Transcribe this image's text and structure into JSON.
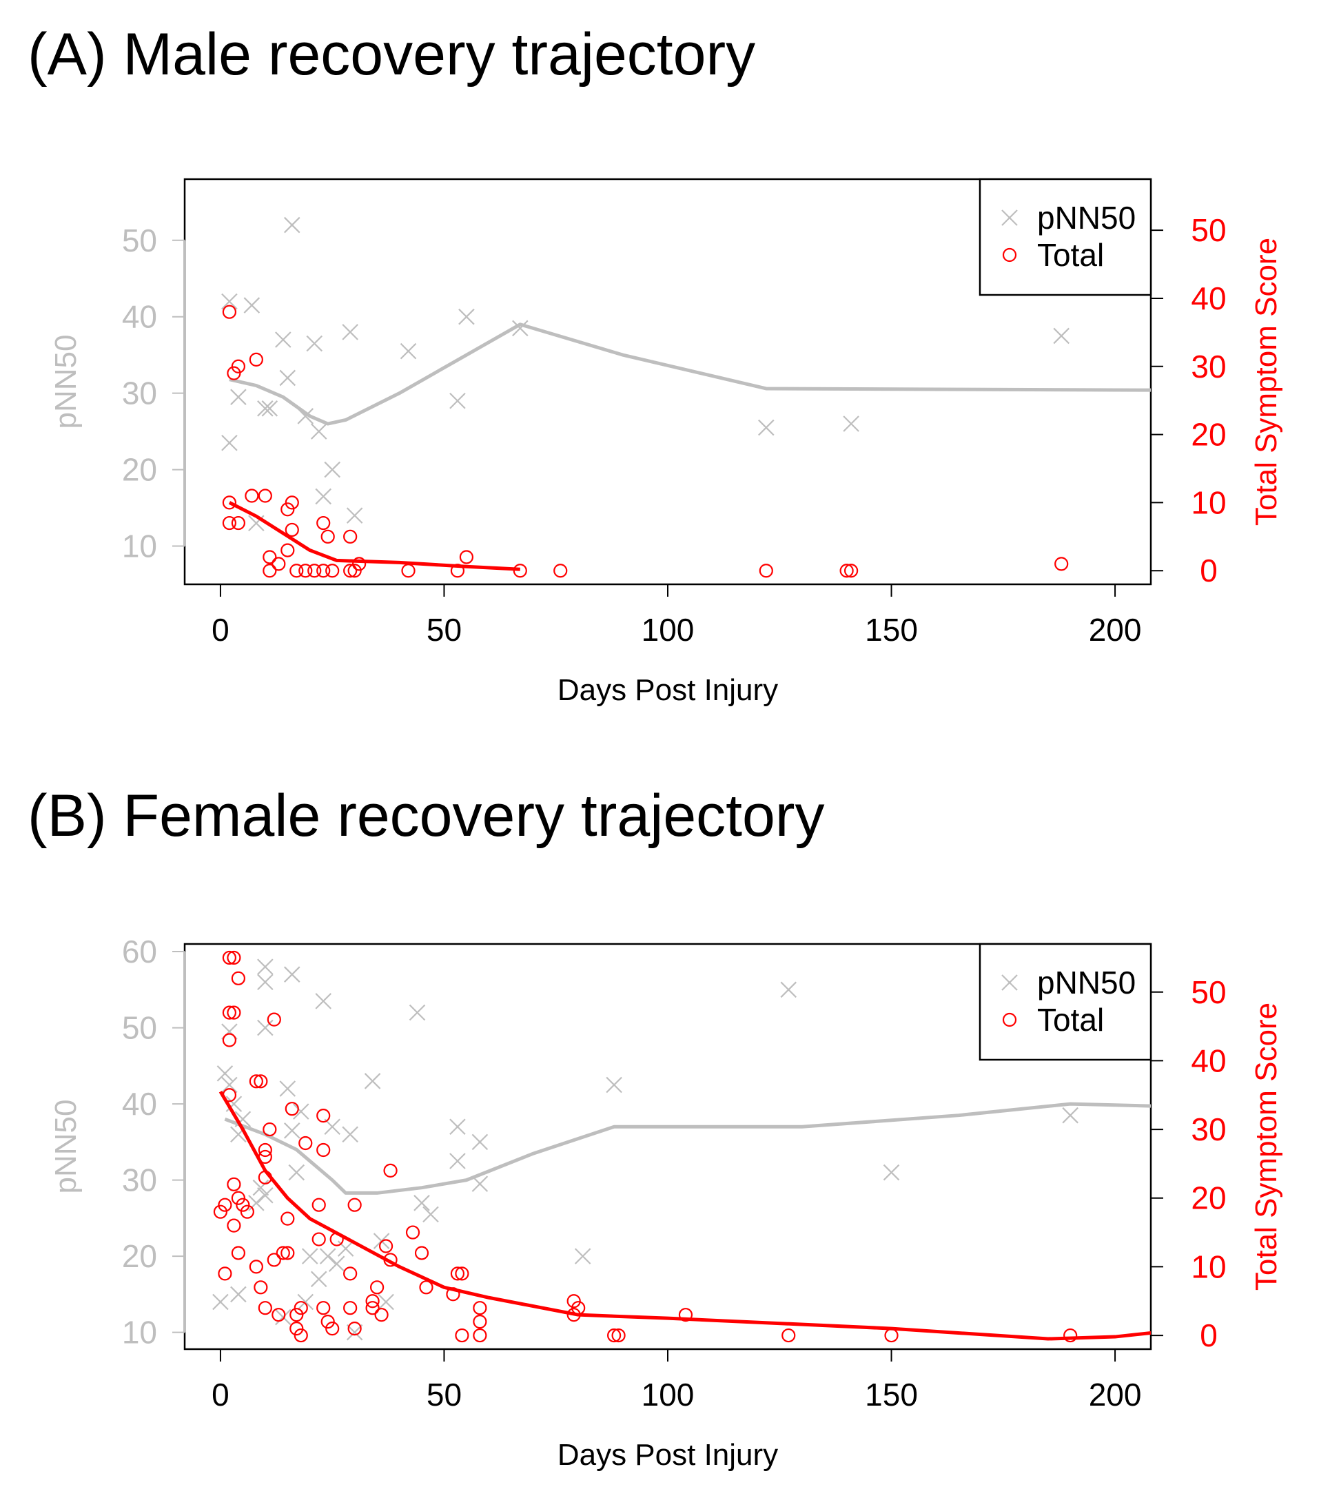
{
  "chart_data": [
    {
      "type": "scatter",
      "title": "(A) Male recovery trajectory",
      "xlabel": "Days Post Injury",
      "ylabel": "pNN50",
      "ylabel_right": "Total Symptom Score",
      "xlim": [
        -8,
        208
      ],
      "ylim": [
        5,
        58
      ],
      "ylim_right": [
        -2,
        57.5
      ],
      "xticks": [
        "0",
        "50",
        "100",
        "150",
        "200"
      ],
      "yticks": [
        "10",
        "20",
        "30",
        "40",
        "50"
      ],
      "yticks_right": [
        "0",
        "10",
        "20",
        "30",
        "40",
        "50"
      ],
      "legend_position": "top-right",
      "colors": {
        "pnn50": "#bebebe",
        "total": "#ff0000"
      },
      "series": [
        {
          "name": "pNN50",
          "axis": "left",
          "marker": "x",
          "points": [
            [
              2,
              23.5
            ],
            [
              2,
              42
            ],
            [
              4,
              29.5
            ],
            [
              7,
              41.5
            ],
            [
              8,
              13
            ],
            [
              10,
              28
            ],
            [
              11,
              28
            ],
            [
              14,
              37
            ],
            [
              15,
              32
            ],
            [
              16,
              52
            ],
            [
              19,
              27
            ],
            [
              21,
              36.5
            ],
            [
              22,
              25
            ],
            [
              23,
              16.5
            ],
            [
              25,
              20
            ],
            [
              29,
              38
            ],
            [
              30,
              14
            ],
            [
              42,
              35.5
            ],
            [
              53,
              29
            ],
            [
              55,
              40
            ],
            [
              67,
              38.5
            ],
            [
              122,
              25.5
            ],
            [
              141,
              26
            ],
            [
              188,
              37.5
            ]
          ],
          "smooth": [
            [
              2,
              31.8
            ],
            [
              8,
              31
            ],
            [
              14,
              29.5
            ],
            [
              20,
              27
            ],
            [
              24,
              26
            ],
            [
              28,
              26.5
            ],
            [
              40,
              30
            ],
            [
              55,
              35
            ],
            [
              67,
              39
            ],
            [
              90,
              35
            ],
            [
              122,
              30.6
            ],
            [
              165,
              30.5
            ],
            [
              210,
              30.4
            ]
          ]
        },
        {
          "name": "Total",
          "axis": "right",
          "marker": "circle",
          "points": [
            [
              2,
              38
            ],
            [
              2,
              10
            ],
            [
              2,
              7
            ],
            [
              3,
              29
            ],
            [
              4,
              30
            ],
            [
              4,
              7
            ],
            [
              7,
              11
            ],
            [
              8,
              31
            ],
            [
              10,
              11
            ],
            [
              11,
              2
            ],
            [
              11,
              0
            ],
            [
              13,
              1
            ],
            [
              15,
              9
            ],
            [
              15,
              3
            ],
            [
              16,
              10
            ],
            [
              16,
              6
            ],
            [
              17,
              0
            ],
            [
              19,
              0
            ],
            [
              21,
              0
            ],
            [
              23,
              7
            ],
            [
              23,
              0
            ],
            [
              24,
              5
            ],
            [
              25,
              0
            ],
            [
              29,
              5
            ],
            [
              29,
              0
            ],
            [
              30,
              0
            ],
            [
              31,
              1
            ],
            [
              42,
              0
            ],
            [
              53,
              0
            ],
            [
              55,
              2
            ],
            [
              67,
              0
            ],
            [
              76,
              0
            ],
            [
              122,
              0
            ],
            [
              140,
              0
            ],
            [
              141,
              0
            ],
            [
              188,
              1
            ]
          ],
          "smooth": [
            [
              2,
              10
            ],
            [
              8,
              8
            ],
            [
              14,
              5.5
            ],
            [
              20,
              3
            ],
            [
              26,
              1.5
            ],
            [
              40,
              1.2
            ],
            [
              55,
              0.6
            ],
            [
              67,
              0.2
            ]
          ]
        }
      ]
    },
    {
      "type": "scatter",
      "title": "(B) Female recovery trajectory",
      "xlabel": "Days Post Injury",
      "ylabel": "pNN50",
      "ylabel_right": "Total Symptom Score",
      "xlim": [
        -8,
        208
      ],
      "ylim": [
        7.8,
        61
      ],
      "ylim_right": [
        -2,
        57
      ],
      "xticks": [
        "0",
        "50",
        "100",
        "150",
        "200"
      ],
      "yticks": [
        "10",
        "20",
        "30",
        "40",
        "50",
        "60"
      ],
      "yticks_right": [
        "0",
        "10",
        "20",
        "30",
        "40",
        "50"
      ],
      "legend_position": "top-right",
      "colors": {
        "pnn50": "#bebebe",
        "total": "#ff0000"
      },
      "series": [
        {
          "name": "pNN50",
          "axis": "left",
          "marker": "x",
          "points": [
            [
              0,
              14
            ],
            [
              1,
              44
            ],
            [
              2,
              49.5
            ],
            [
              2,
              42.5
            ],
            [
              3,
              40
            ],
            [
              4,
              36
            ],
            [
              4,
              15
            ],
            [
              5,
              38
            ],
            [
              8,
              27
            ],
            [
              9,
              29
            ],
            [
              10,
              58
            ],
            [
              10,
              56
            ],
            [
              10,
              50
            ],
            [
              10,
              28
            ],
            [
              14,
              12
            ],
            [
              15,
              42
            ],
            [
              16,
              36.5
            ],
            [
              17,
              31
            ],
            [
              16,
              57
            ],
            [
              18,
              39
            ],
            [
              19,
              14
            ],
            [
              20,
              20
            ],
            [
              22,
              17
            ],
            [
              23,
              53.5
            ],
            [
              24,
              20
            ],
            [
              25,
              37
            ],
            [
              26,
              19
            ],
            [
              28,
              21
            ],
            [
              29,
              36
            ],
            [
              30,
              10
            ],
            [
              34,
              43
            ],
            [
              36,
              22
            ],
            [
              37,
              14
            ],
            [
              44,
              52
            ],
            [
              45,
              27
            ],
            [
              47,
              25.5
            ],
            [
              53,
              37
            ],
            [
              53,
              32.5
            ],
            [
              58,
              35
            ],
            [
              58,
              29.5
            ],
            [
              81,
              20
            ],
            [
              88,
              42.5
            ],
            [
              127,
              55
            ],
            [
              150,
              31
            ],
            [
              190,
              38.5
            ]
          ],
          "smooth": [
            [
              1,
              38
            ],
            [
              10,
              36
            ],
            [
              17,
              34
            ],
            [
              25,
              30
            ],
            [
              28,
              28.3
            ],
            [
              35,
              28.3
            ],
            [
              45,
              29
            ],
            [
              55,
              30
            ],
            [
              70,
              33.5
            ],
            [
              88,
              37
            ],
            [
              130,
              37
            ],
            [
              165,
              38.5
            ],
            [
              190,
              40
            ],
            [
              210,
              39.7
            ]
          ]
        },
        {
          "name": "Total",
          "axis": "right",
          "marker": "circle",
          "points": [
            [
              0,
              18
            ],
            [
              1,
              19
            ],
            [
              1,
              9
            ],
            [
              2,
              55
            ],
            [
              2,
              47
            ],
            [
              2,
              43
            ],
            [
              2,
              35
            ],
            [
              3,
              55
            ],
            [
              3,
              47
            ],
            [
              3,
              22
            ],
            [
              3,
              16
            ],
            [
              4,
              52
            ],
            [
              4,
              20
            ],
            [
              4,
              12
            ],
            [
              5,
              19
            ],
            [
              6,
              18
            ],
            [
              8,
              37
            ],
            [
              8,
              10
            ],
            [
              9,
              37
            ],
            [
              9,
              7
            ],
            [
              10,
              27
            ],
            [
              10,
              26
            ],
            [
              10,
              23
            ],
            [
              10,
              4
            ],
            [
              11,
              30
            ],
            [
              12,
              46
            ],
            [
              12,
              11
            ],
            [
              13,
              3
            ],
            [
              14,
              12
            ],
            [
              15,
              17
            ],
            [
              15,
              12
            ],
            [
              16,
              33
            ],
            [
              17,
              3
            ],
            [
              17,
              1
            ],
            [
              18,
              4
            ],
            [
              18,
              0
            ],
            [
              19,
              28
            ],
            [
              22,
              19
            ],
            [
              22,
              14
            ],
            [
              23,
              32
            ],
            [
              23,
              27
            ],
            [
              23,
              4
            ],
            [
              24,
              2
            ],
            [
              25,
              1
            ],
            [
              26,
              14
            ],
            [
              29,
              9
            ],
            [
              29,
              4
            ],
            [
              30,
              19
            ],
            [
              30,
              1
            ],
            [
              34,
              5
            ],
            [
              34,
              4
            ],
            [
              35,
              7
            ],
            [
              36,
              3
            ],
            [
              37,
              13
            ],
            [
              38,
              24
            ],
            [
              38,
              11
            ],
            [
              43,
              15
            ],
            [
              45,
              12
            ],
            [
              46,
              7
            ],
            [
              52,
              6
            ],
            [
              53,
              9
            ],
            [
              54,
              9
            ],
            [
              54,
              0
            ],
            [
              58,
              4
            ],
            [
              58,
              2
            ],
            [
              58,
              0
            ],
            [
              79,
              5
            ],
            [
              79,
              3
            ],
            [
              80,
              4
            ],
            [
              88,
              0
            ],
            [
              89,
              0
            ],
            [
              104,
              3
            ],
            [
              127,
              0
            ],
            [
              150,
              0
            ],
            [
              190,
              0
            ]
          ],
          "smooth": [
            [
              0,
              35.5
            ],
            [
              5,
              30
            ],
            [
              10,
              24
            ],
            [
              15,
              20
            ],
            [
              20,
              17
            ],
            [
              30,
              13.5
            ],
            [
              40,
              10
            ],
            [
              50,
              7
            ],
            [
              60,
              5.5
            ],
            [
              80,
              3
            ],
            [
              100,
              2.5
            ],
            [
              150,
              1
            ],
            [
              185,
              -0.5
            ],
            [
              200,
              -0.2
            ],
            [
              210,
              0.5
            ]
          ]
        }
      ]
    }
  ],
  "panels": [
    {
      "title": "(A) Male recovery trajectory",
      "xlabel": "Days Post Injury",
      "ylabel": "pNN50",
      "ylabel_right": "Total Symptom Score",
      "legend": [
        "pNN50",
        "Total"
      ]
    },
    {
      "title": "(B) Female recovery trajectory",
      "xlabel": "Days Post Injury",
      "ylabel": "pNN50",
      "ylabel_right": "Total Symptom Score",
      "legend": [
        "pNN50",
        "Total"
      ]
    }
  ]
}
